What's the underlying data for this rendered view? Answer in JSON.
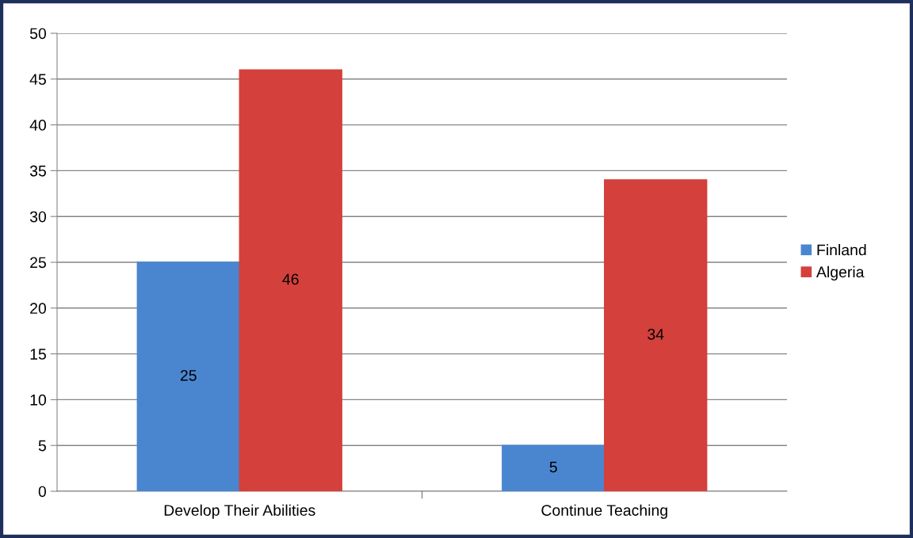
{
  "chart_data": {
    "type": "bar",
    "categories": [
      "Develop Their Abilities",
      "Continue Teaching"
    ],
    "series": [
      {
        "name": "Finland",
        "color": "#4a86d0",
        "values": [
          25,
          5
        ]
      },
      {
        "name": "Algeria",
        "color": "#d4403c",
        "values": [
          46,
          34
        ]
      }
    ],
    "ylim": [
      0,
      50
    ],
    "yticks": [
      0,
      5,
      10,
      15,
      20,
      25,
      30,
      35,
      40,
      45,
      50
    ],
    "grid": "y",
    "legend": "right",
    "data_labels": true
  }
}
